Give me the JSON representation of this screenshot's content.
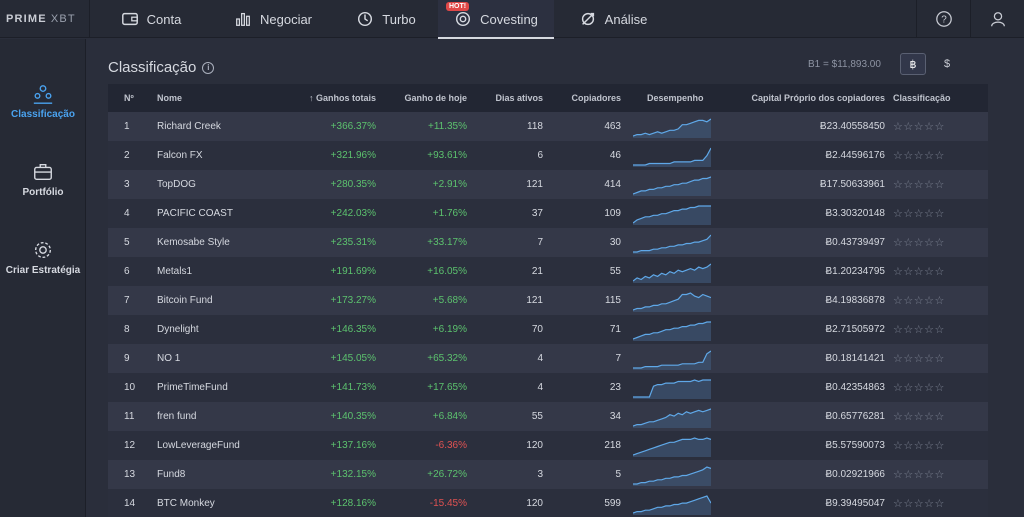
{
  "logo": {
    "brand": "PRIME",
    "suffix": "XBT"
  },
  "nav": [
    {
      "label": "Conta",
      "icon": "wallet-icon"
    },
    {
      "label": "Negociar",
      "icon": "bar-chart-icon"
    },
    {
      "label": "Turbo",
      "icon": "turbo-icon"
    },
    {
      "label": "Covesting",
      "icon": "covesting-icon",
      "badge": "HOT!",
      "active": true
    },
    {
      "label": "Análise",
      "icon": "analysis-icon"
    }
  ],
  "top_right": {
    "help_icon": "help-icon",
    "user_icon": "user-icon"
  },
  "sidebar": [
    {
      "label": "Classificação",
      "icon": "ranking-icon",
      "active": true
    },
    {
      "label": "Portfólio",
      "icon": "briefcase-icon"
    },
    {
      "label": "Criar Estratégia",
      "icon": "settings-gear-icon"
    }
  ],
  "main": {
    "title": "Classificação",
    "info_icon": "i",
    "rate": "B1 = $11,893.00",
    "currency_btc": "฿",
    "currency_usd": "$"
  },
  "table": {
    "headers": {
      "rank": "Nº",
      "name": "Nome",
      "total": "Ganhos totais",
      "sort_arrow": "↑",
      "today": "Ganho de hoje",
      "days": "Dias ativos",
      "copiers": "Copiadores",
      "perf": "Desempenho",
      "equity": "Capital Próprio dos copiadores",
      "rating": "Classificação"
    },
    "rows": [
      {
        "rank": "1",
        "name": "Richard Creek",
        "total": "+366.37%",
        "today": "+11.35%",
        "today_neg": false,
        "days": "118",
        "copiers": "463",
        "equity": "Ƀ23.40558450",
        "stars": "☆☆☆☆☆",
        "spark": [
          2,
          3,
          3,
          4,
          3,
          4,
          5,
          4,
          5,
          6,
          6,
          7,
          10,
          10,
          11,
          12,
          13,
          13,
          12,
          14
        ]
      },
      {
        "rank": "2",
        "name": "Falcon FX",
        "total": "+321.96%",
        "today": "+93.61%",
        "today_neg": false,
        "days": "6",
        "copiers": "46",
        "equity": "Ƀ2.44596176",
        "stars": "☆☆☆☆☆",
        "spark": [
          2,
          2,
          2,
          2,
          3,
          3,
          3,
          3,
          3,
          3,
          4,
          4,
          4,
          4,
          4,
          5,
          5,
          5,
          8,
          13
        ]
      },
      {
        "rank": "3",
        "name": "TopDOG",
        "total": "+280.35%",
        "today": "+2.91%",
        "today_neg": false,
        "days": "121",
        "copiers": "414",
        "equity": "Ƀ17.50633961",
        "stars": "☆☆☆☆☆",
        "spark": [
          2,
          3,
          4,
          4,
          5,
          5,
          6,
          6,
          7,
          7,
          8,
          8,
          9,
          9,
          10,
          11,
          11,
          12,
          12,
          13
        ]
      },
      {
        "rank": "4",
        "name": "PACIFIC COAST",
        "total": "+242.03%",
        "today": "+1.76%",
        "today_neg": false,
        "days": "37",
        "copiers": "109",
        "equity": "Ƀ3.30320148",
        "stars": "☆☆☆☆☆",
        "spark": [
          2,
          4,
          5,
          6,
          6,
          7,
          7,
          8,
          8,
          9,
          10,
          10,
          11,
          11,
          12,
          12,
          13,
          13,
          13,
          13
        ]
      },
      {
        "rank": "5",
        "name": "Kemosabe Style",
        "total": "+235.31%",
        "today": "+33.17%",
        "today_neg": false,
        "days": "7",
        "copiers": "30",
        "equity": "Ƀ0.43739497",
        "stars": "☆☆☆☆☆",
        "spark": [
          2,
          2,
          3,
          3,
          3,
          4,
          4,
          5,
          5,
          6,
          6,
          7,
          7,
          8,
          8,
          9,
          9,
          10,
          11,
          14
        ]
      },
      {
        "rank": "6",
        "name": "Metals1",
        "total": "+191.69%",
        "today": "+16.05%",
        "today_neg": false,
        "days": "21",
        "copiers": "55",
        "equity": "Ƀ1.20234795",
        "stars": "☆☆☆☆☆",
        "spark": [
          3,
          5,
          4,
          6,
          5,
          7,
          6,
          8,
          7,
          9,
          8,
          10,
          9,
          10,
          11,
          10,
          12,
          11,
          12,
          14
        ]
      },
      {
        "rank": "7",
        "name": "Bitcoin Fund",
        "total": "+173.27%",
        "today": "+5.68%",
        "today_neg": false,
        "days": "121",
        "copiers": "115",
        "equity": "Ƀ4.19836878",
        "stars": "☆☆☆☆☆",
        "spark": [
          2,
          3,
          3,
          4,
          4,
          5,
          5,
          6,
          6,
          7,
          8,
          9,
          12,
          12,
          13,
          11,
          10,
          12,
          11,
          10
        ]
      },
      {
        "rank": "8",
        "name": "Dynelight",
        "total": "+146.35%",
        "today": "+6.19%",
        "today_neg": false,
        "days": "70",
        "copiers": "71",
        "equity": "Ƀ2.71505972",
        "stars": "☆☆☆☆☆",
        "spark": [
          2,
          3,
          4,
          5,
          5,
          6,
          6,
          7,
          8,
          8,
          9,
          9,
          10,
          10,
          11,
          11,
          12,
          12,
          13,
          13
        ]
      },
      {
        "rank": "9",
        "name": "NO 1",
        "total": "+145.05%",
        "today": "+65.32%",
        "today_neg": false,
        "days": "4",
        "copiers": "7",
        "equity": "Ƀ0.18141421",
        "stars": "☆☆☆☆☆",
        "spark": [
          2,
          2,
          2,
          3,
          3,
          3,
          3,
          4,
          4,
          4,
          4,
          4,
          5,
          5,
          5,
          5,
          6,
          6,
          12,
          14
        ]
      },
      {
        "rank": "10",
        "name": "PrimeTimeFund",
        "total": "+141.73%",
        "today": "+17.65%",
        "today_neg": false,
        "days": "4",
        "copiers": "23",
        "equity": "Ƀ0.42354863",
        "stars": "☆☆☆☆☆",
        "spark": [
          2,
          2,
          2,
          2,
          2,
          9,
          10,
          10,
          11,
          11,
          11,
          12,
          12,
          12,
          12,
          13,
          12,
          13,
          13,
          13
        ]
      },
      {
        "rank": "11",
        "name": "fren fund",
        "total": "+140.35%",
        "today": "+6.84%",
        "today_neg": false,
        "days": "55",
        "copiers": "34",
        "equity": "Ƀ0.65776281",
        "stars": "☆☆☆☆☆",
        "spark": [
          2,
          3,
          3,
          4,
          5,
          5,
          6,
          7,
          8,
          10,
          9,
          11,
          10,
          12,
          11,
          12,
          13,
          12,
          13,
          14
        ]
      },
      {
        "rank": "12",
        "name": "LowLeverageFund",
        "total": "+137.16%",
        "today": "-6.36%",
        "today_neg": true,
        "days": "120",
        "copiers": "218",
        "equity": "Ƀ5.57590073",
        "stars": "☆☆☆☆☆",
        "spark": [
          2,
          3,
          4,
          5,
          6,
          7,
          8,
          9,
          10,
          11,
          11,
          12,
          13,
          13,
          13,
          14,
          13,
          13,
          14,
          13
        ]
      },
      {
        "rank": "13",
        "name": "Fund8",
        "total": "+132.15%",
        "today": "+26.72%",
        "today_neg": false,
        "days": "3",
        "copiers": "5",
        "equity": "Ƀ0.02921966",
        "stars": "☆☆☆☆☆",
        "spark": [
          2,
          2,
          3,
          3,
          4,
          4,
          5,
          5,
          6,
          6,
          7,
          7,
          8,
          8,
          9,
          10,
          11,
          12,
          14,
          13
        ]
      },
      {
        "rank": "14",
        "name": "BTC Monkey",
        "total": "+128.16%",
        "today": "-15.45%",
        "today_neg": true,
        "days": "120",
        "copiers": "599",
        "equity": "Ƀ9.39495047",
        "stars": "☆☆☆☆☆",
        "spark": [
          2,
          3,
          3,
          4,
          4,
          5,
          6,
          6,
          7,
          7,
          8,
          8,
          9,
          9,
          10,
          11,
          12,
          13,
          14,
          9
        ]
      }
    ]
  },
  "colors": {
    "positive": "#5cc26e",
    "negative": "#e05252",
    "accent": "#4aa3f0",
    "spark_line": "#5fa8e8"
  }
}
